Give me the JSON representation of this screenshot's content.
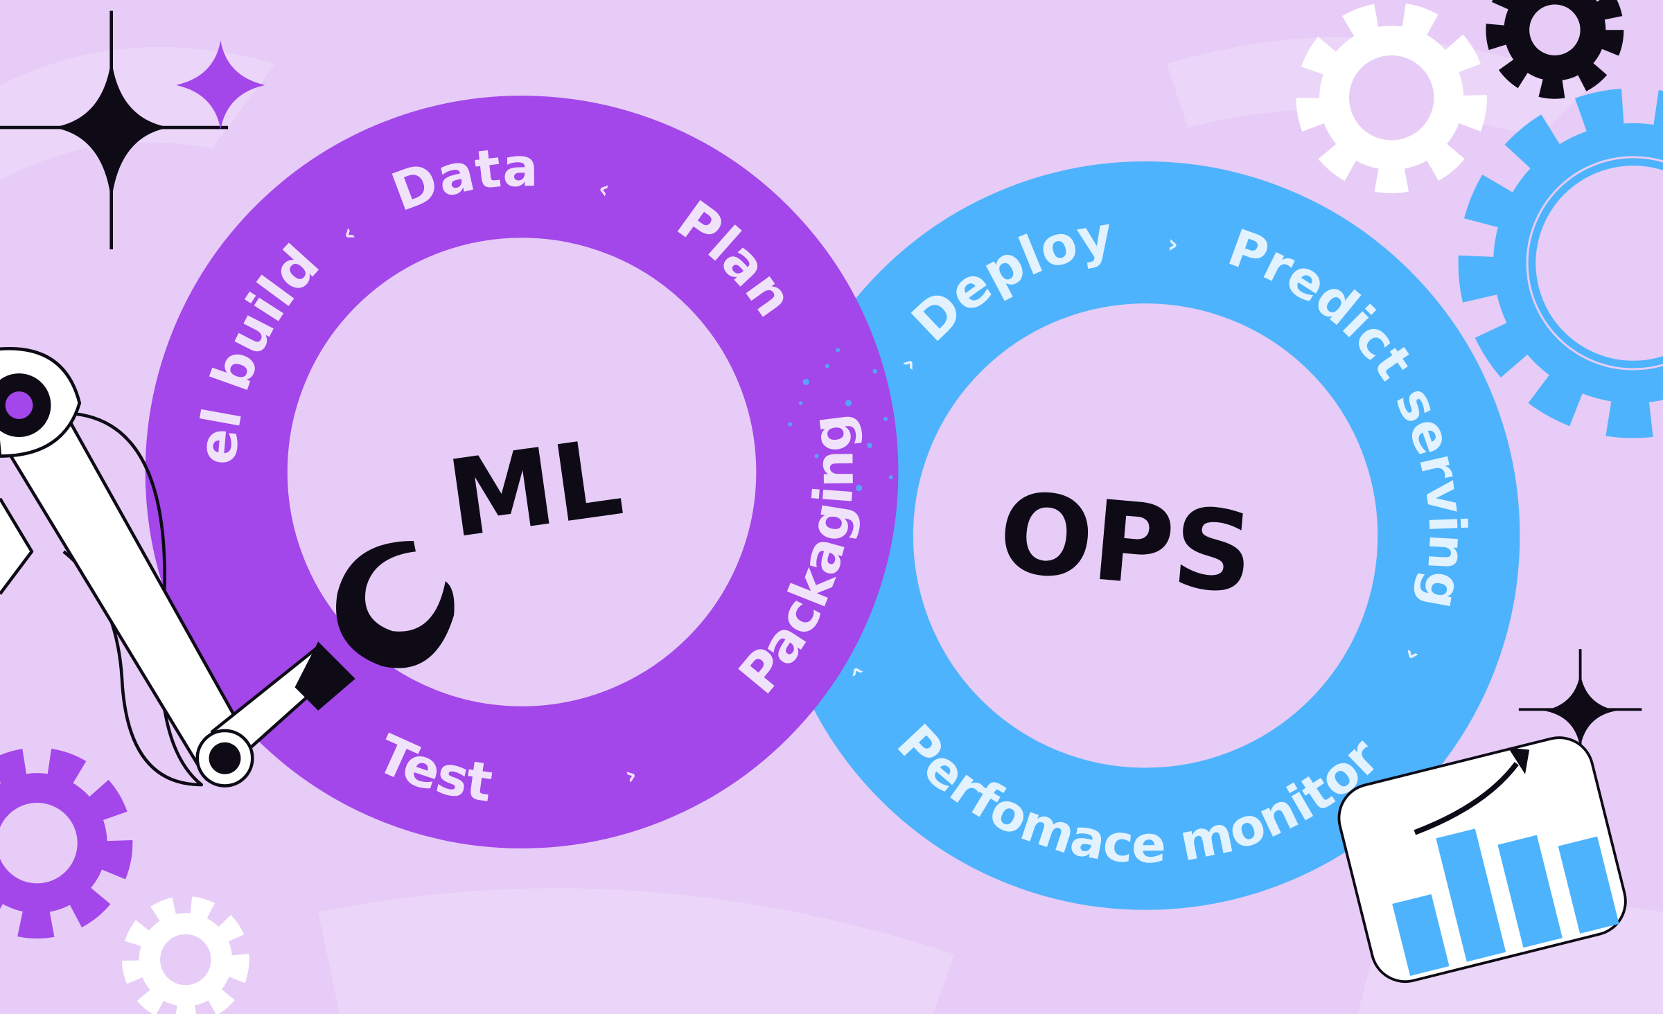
{
  "ml_ring": {
    "center_label": "ML",
    "stages": [
      "Model build",
      "Data",
      "Plan",
      "Packaging",
      "Test"
    ],
    "color": "#A346EA"
  },
  "ops_ring": {
    "center_label": "OPS",
    "stages": [
      "Deploy",
      "Predict serving",
      "Perfomace monitor"
    ],
    "color": "#4DB3FC"
  },
  "chevrons": {
    "forward": "›",
    "back": "‹"
  },
  "colors": {
    "background": "#E6CCF6",
    "ink": "#0E0B16",
    "white": "#FFFFFF"
  },
  "decorations": [
    "sparkle-icon",
    "gear-icon",
    "robot-arm",
    "wrench-icon",
    "bar-chart-card",
    "trend-arrow-icon"
  ]
}
